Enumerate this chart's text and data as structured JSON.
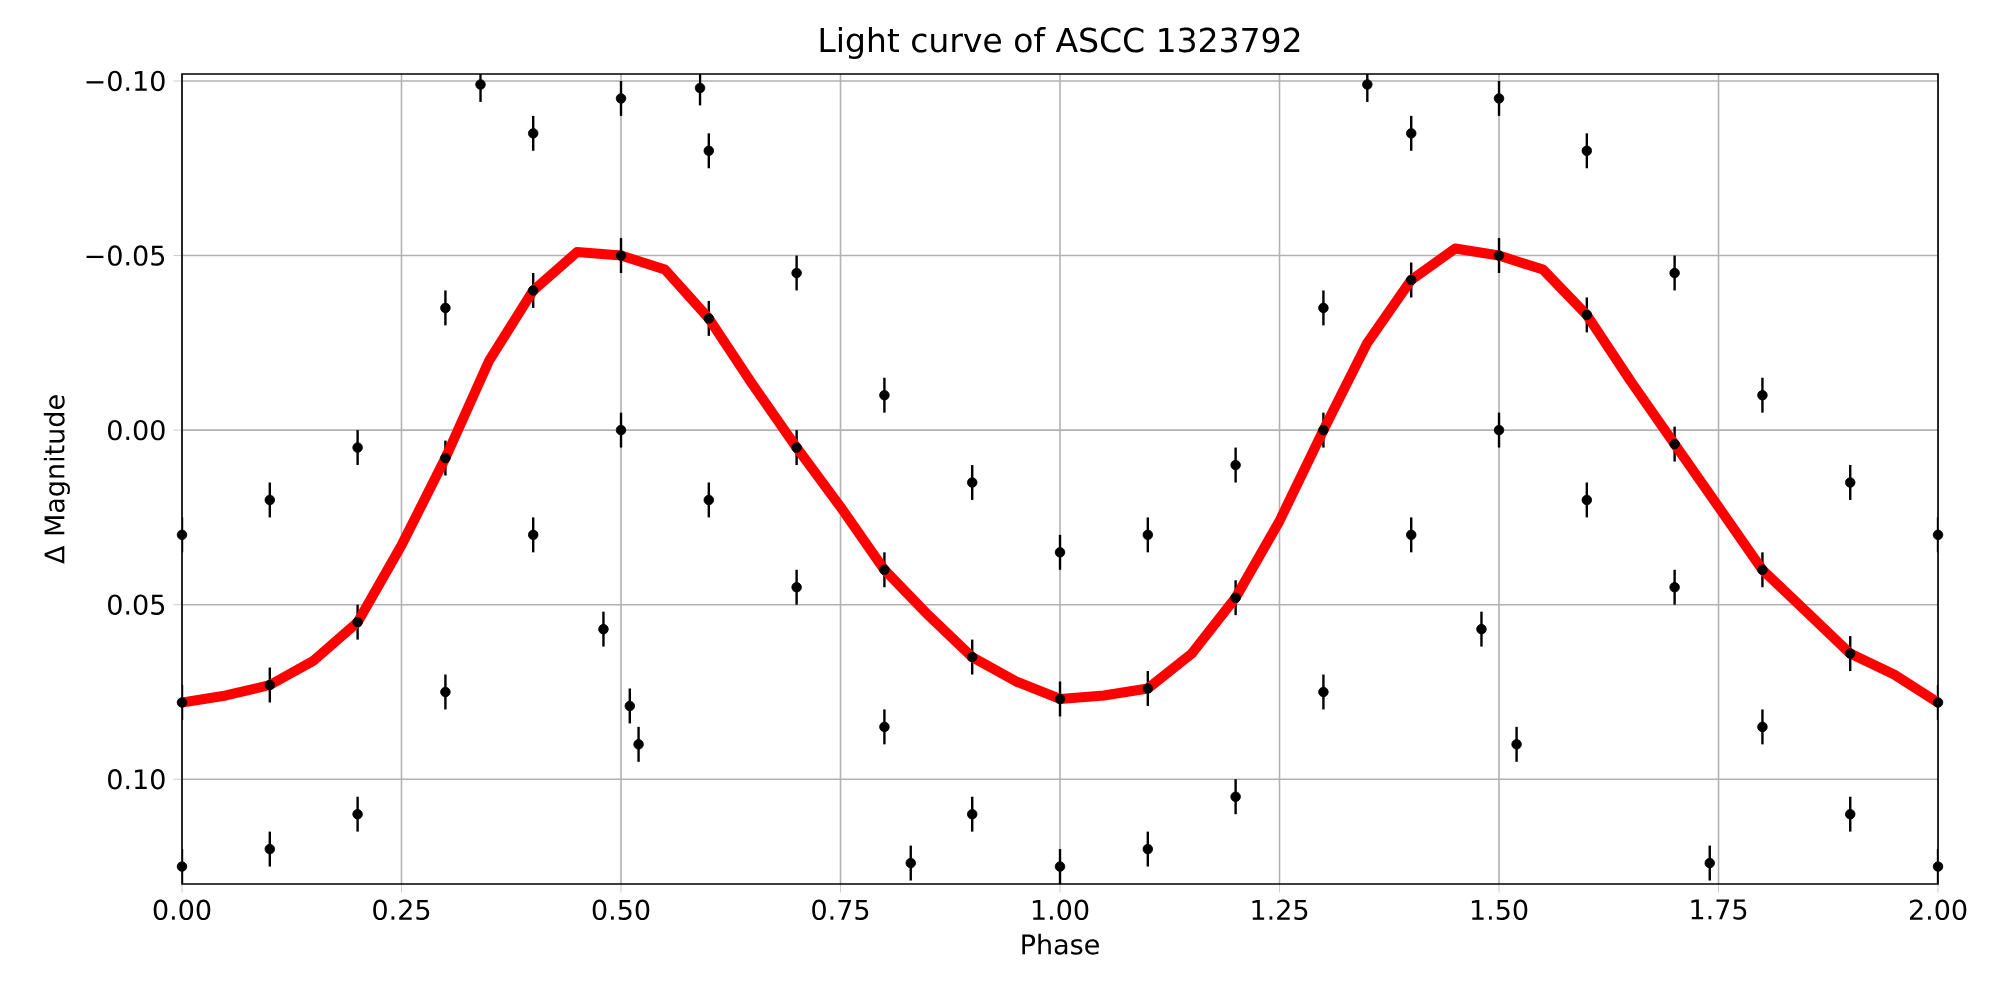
{
  "chart_data": {
    "type": "scatter",
    "title": "Light curve of ASCC 1323792",
    "xlabel": "Phase",
    "ylabel": "Δ Magnitude",
    "xlim": [
      0,
      2
    ],
    "ylim": [
      0.13,
      -0.102
    ],
    "xticks": [
      {
        "value": 0,
        "label": "0.00"
      },
      {
        "value": 0.25,
        "label": "0.25"
      },
      {
        "value": 0.5,
        "label": "0.50"
      },
      {
        "value": 0.75,
        "label": "0.75"
      },
      {
        "value": 1,
        "label": "1.00"
      },
      {
        "value": 1.25,
        "label": "1.25"
      },
      {
        "value": 1.5,
        "label": "1.50"
      },
      {
        "value": 1.75,
        "label": "1.75"
      },
      {
        "value": 2,
        "label": "2.00"
      }
    ],
    "yticks": [
      {
        "value": -0.1,
        "label": "−0.10"
      },
      {
        "value": -0.05,
        "label": "−0.05"
      },
      {
        "value": 0,
        "label": "0.00"
      },
      {
        "value": 0.05,
        "label": "0.05"
      },
      {
        "value": 0.1,
        "label": "0.10"
      }
    ],
    "grid": true,
    "series": [
      {
        "color": "#000000",
        "marker": "circle",
        "x": [
          0,
          0,
          0,
          0.1,
          0.1,
          0.1,
          0.2,
          0.2,
          0.2,
          0.3,
          0.3,
          0.3,
          0.4,
          0.4,
          0.4,
          0.5,
          0.5,
          0.5,
          0.6,
          0.6,
          0.6,
          0.7,
          0.7,
          0.7,
          0.8,
          0.8,
          0.8,
          0.9,
          0.9,
          0.9,
          1.0,
          1.0,
          1.0,
          1.1,
          1.1,
          1.1,
          1.2,
          1.2,
          1.2,
          1.3,
          1.3,
          1.3,
          1.4,
          1.4,
          1.4,
          1.5,
          1.5,
          1.5,
          1.6,
          1.6,
          1.6,
          1.7,
          1.7,
          1.7,
          1.8,
          1.8,
          1.8,
          1.9,
          1.9,
          1.9,
          2.0,
          2.0,
          2.0,
          0.34,
          0.48,
          0.51,
          0.52,
          0.83,
          1.35,
          1.48,
          1.52,
          1.74,
          0.59
        ],
        "values": [
          0.03,
          0.078,
          0.125,
          0.02,
          0.073,
          0.12,
          0.005,
          0.055,
          0.11,
          -0.035,
          0.008,
          0.075,
          -0.085,
          -0.04,
          0.03,
          -0.095,
          -0.05,
          0.0,
          -0.08,
          -0.032,
          0.02,
          -0.045,
          0.005,
          0.045,
          -0.01,
          0.04,
          0.085,
          0.015,
          0.065,
          0.11,
          0.035,
          0.077,
          0.125,
          0.03,
          0.074,
          0.12,
          0.01,
          0.048,
          0.105,
          -0.035,
          0.0,
          0.075,
          -0.085,
          -0.043,
          0.03,
          -0.095,
          -0.05,
          0.0,
          -0.08,
          -0.033,
          0.02,
          -0.045,
          0.004,
          0.045,
          -0.01,
          0.04,
          0.085,
          0.015,
          0.064,
          0.11,
          0.03,
          0.078,
          0.125,
          -0.099,
          0.057,
          0.079,
          0.09,
          0.124,
          -0.099,
          0.057,
          0.09,
          0.124,
          -0.098
        ],
        "errors": [
          0.005,
          0.005,
          0.005,
          0.005,
          0.005,
          0.005,
          0.005,
          0.005,
          0.005,
          0.005,
          0.005,
          0.005,
          0.005,
          0.005,
          0.005,
          0.005,
          0.005,
          0.005,
          0.005,
          0.005,
          0.005,
          0.005,
          0.005,
          0.005,
          0.005,
          0.005,
          0.005,
          0.005,
          0.005,
          0.005,
          0.005,
          0.005,
          0.005,
          0.005,
          0.005,
          0.005,
          0.005,
          0.005,
          0.005,
          0.005,
          0.005,
          0.005,
          0.005,
          0.005,
          0.005,
          0.005,
          0.005,
          0.005,
          0.005,
          0.005,
          0.005,
          0.005,
          0.005,
          0.005,
          0.005,
          0.005,
          0.005,
          0.005,
          0.005,
          0.005,
          0.005,
          0.005,
          0.005,
          0.005,
          0.005,
          0.005,
          0.005,
          0.005,
          0.005,
          0.005,
          0.005,
          0.005,
          0.005
        ]
      },
      {
        "type": "line",
        "color": "#ff0000",
        "marker": "none",
        "x": [
          0,
          0.05,
          0.1,
          0.15,
          0.2,
          0.25,
          0.3,
          0.35,
          0.4,
          0.45,
          0.5,
          0.55,
          0.6,
          0.65,
          0.7,
          0.75,
          0.8,
          0.85,
          0.9,
          0.95,
          1.0,
          1.05,
          1.1,
          1.15,
          1.2,
          1.25,
          1.3,
          1.35,
          1.4,
          1.45,
          1.5,
          1.55,
          1.6,
          1.65,
          1.7,
          1.75,
          1.8,
          1.85,
          1.9,
          1.95,
          2.0
        ],
        "values": [
          0.078,
          0.076,
          0.073,
          0.066,
          0.055,
          0.033,
          0.008,
          -0.02,
          -0.04,
          -0.051,
          -0.05,
          -0.046,
          -0.032,
          -0.013,
          0.005,
          0.022,
          0.04,
          0.053,
          0.065,
          0.072,
          0.077,
          0.076,
          0.074,
          0.064,
          0.048,
          0.026,
          0.0,
          -0.025,
          -0.043,
          -0.052,
          -0.05,
          -0.046,
          -0.033,
          -0.014,
          0.004,
          0.022,
          0.04,
          0.052,
          0.064,
          0.07,
          0.078
        ]
      }
    ]
  }
}
